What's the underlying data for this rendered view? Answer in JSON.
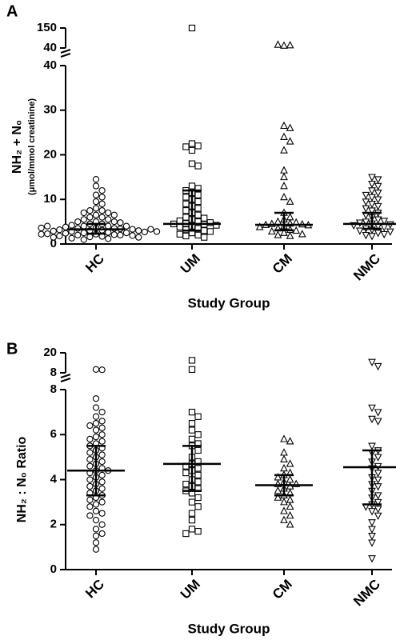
{
  "chart_data": [
    {
      "type": "dotplot",
      "panel_label": "A",
      "y_label": "NH₂ + N₀",
      "y_unit": "(μmol/mmol creatinine)",
      "x_label": "Study Group",
      "categories": [
        "HC",
        "UM",
        "CM",
        "NMC"
      ],
      "markers": [
        "circle",
        "square",
        "triangle",
        "triangle-down"
      ],
      "ylim": [
        0,
        40
      ],
      "yticks": [
        0,
        10,
        20,
        30,
        40
      ],
      "ylim_upper": [
        40,
        150
      ],
      "yticks_upper": [
        40,
        150
      ],
      "points": [
        [
          14.5,
          13,
          12,
          11,
          10.5,
          9.5,
          9,
          8,
          7.5,
          7.5,
          7,
          7,
          6.5,
          6.5,
          6,
          6,
          5.5,
          5.5,
          5,
          5,
          5,
          4.8,
          4.5,
          4.5,
          4.2,
          4,
          4,
          4,
          3.8,
          3.6,
          3.5,
          3.5,
          3.4,
          3.3,
          3.2,
          3.1,
          3,
          3,
          2.9,
          2.8,
          2.7,
          2.6,
          2.5,
          2.5,
          2.4,
          2.3,
          2.2,
          2.1,
          2,
          2,
          1.9,
          1.8,
          1.7,
          1.6,
          1.5,
          1.5,
          1.3,
          1.2,
          1.0,
          3.3,
          3.6,
          2.8,
          4.0,
          2.2
        ],
        [
          150,
          22.5,
          22,
          21.8,
          21,
          18,
          17.5,
          13,
          12.5,
          12,
          11.5,
          11,
          10.5,
          10,
          9.5,
          9,
          8.5,
          8,
          7.5,
          7,
          6.5,
          6,
          5.8,
          5.5,
          5.2,
          5,
          4.8,
          4.6,
          4.5,
          4.4,
          4.2,
          4,
          3.8,
          3.5,
          3.2,
          3,
          2.8,
          2.5,
          2.2,
          2,
          1.8,
          1.5
        ],
        [
          53,
          55,
          58,
          26.5,
          26,
          24,
          23,
          21,
          16.5,
          15,
          13,
          10.5,
          9.5,
          7,
          6,
          5.5,
          5,
          4.8,
          4.6,
          4.5,
          4.4,
          4.3,
          4.2,
          4,
          3.8,
          3.5,
          3.2,
          3,
          2.8,
          2.5,
          2.2,
          2,
          1.8
        ],
        [
          15,
          14.5,
          13.5,
          13,
          12,
          11.5,
          11,
          10.5,
          10,
          9.5,
          9,
          8.5,
          8,
          7.5,
          7,
          6.5,
          6,
          5.5,
          5.2,
          5,
          4.8,
          4.6,
          4.4,
          4.2,
          4,
          3.8,
          3.5,
          3.2,
          3,
          2.8,
          2.5,
          2.2,
          2,
          1.8
        ]
      ],
      "medians": [
        3.3,
        4.5,
        4.3,
        4.5
      ],
      "q1": [
        2.3,
        3.0,
        3.1,
        3.4
      ],
      "q3": [
        4.5,
        12,
        7,
        7
      ]
    },
    {
      "type": "dotplot",
      "panel_label": "B",
      "y_label": "NH₂ : N₀ Ratio",
      "x_label": "Study Group",
      "categories": [
        "HC",
        "UM",
        "CM",
        "NMC"
      ],
      "markers": [
        "circle",
        "square",
        "triangle",
        "triangle-down"
      ],
      "ylim": [
        0,
        8
      ],
      "yticks": [
        0,
        2,
        4,
        6,
        8
      ],
      "ylim_upper": [
        8,
        20
      ],
      "yticks_upper": [
        8,
        20
      ],
      "points": [
        [
          10,
          9.8,
          7.6,
          7.2,
          7,
          6.8,
          6.6,
          6.5,
          6.4,
          6.3,
          6.2,
          6,
          5.9,
          5.8,
          5.7,
          5.6,
          5.5,
          5.4,
          5.3,
          5.2,
          5.1,
          5,
          4.9,
          4.8,
          4.7,
          4.6,
          4.5,
          4.4,
          4.4,
          4.3,
          4.2,
          4.1,
          4,
          3.9,
          3.8,
          3.7,
          3.6,
          3.5,
          3.4,
          3.3,
          3.2,
          3.1,
          3,
          2.9,
          2.8,
          2.6,
          2.5,
          2.4,
          2.2,
          2,
          1.8,
          1.6,
          1.5,
          1.2,
          0.9
        ],
        [
          15.5,
          10,
          7,
          6.8,
          6.5,
          6.2,
          6,
          5.8,
          5.6,
          5.5,
          5.3,
          5,
          4.8,
          4.7,
          4.6,
          4.5,
          4.4,
          4.3,
          4.2,
          4,
          3.9,
          3.8,
          3.7,
          3.6,
          3.5,
          3.4,
          3.2,
          3,
          2.8,
          2.5,
          2.2,
          1.8,
          1.7,
          1.6
        ],
        [
          5.8,
          5.7,
          5.2,
          4.9,
          4.7,
          4.5,
          4.3,
          4.2,
          4.1,
          4,
          3.9,
          3.8,
          3.8,
          3.7,
          3.6,
          3.5,
          3.4,
          3.3,
          3.2,
          3.1,
          3,
          2.8,
          2.6,
          2.4,
          2.2,
          2
        ],
        [
          14.5,
          12,
          7.2,
          7,
          6.7,
          6.6,
          5.5,
          5.3,
          5.2,
          5,
          4.8,
          4.6,
          4.5,
          4.3,
          4.1,
          4,
          3.8,
          3.7,
          3.5,
          3.3,
          3.2,
          3,
          2.9,
          2.8,
          2.7,
          2.6,
          2.4,
          2.1,
          1.8,
          1.5,
          1.2,
          0.5
        ]
      ],
      "medians": [
        4.4,
        4.7,
        3.75,
        4.55
      ],
      "q1": [
        3.3,
        3.5,
        3.3,
        2.9
      ],
      "q3": [
        5.5,
        5.5,
        4.2,
        5.3
      ]
    }
  ]
}
